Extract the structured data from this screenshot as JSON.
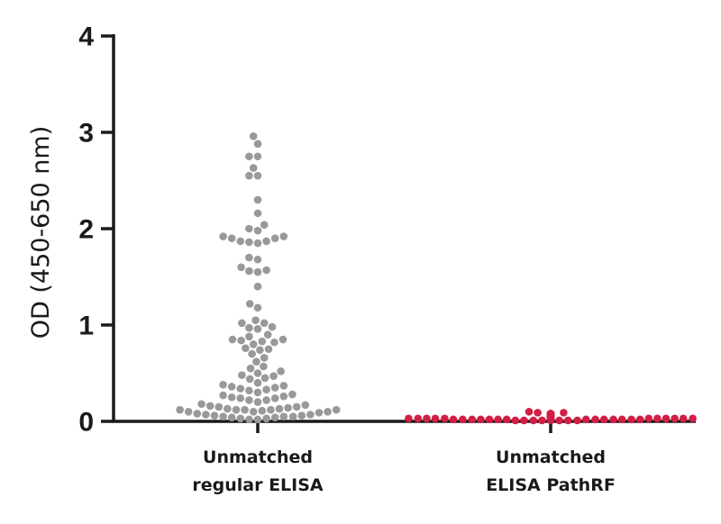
{
  "chart_data": {
    "type": "scatter",
    "subtype": "beeswarm",
    "ylabel": "OD (450-650 nm)",
    "ylim": [
      0,
      4
    ],
    "yticks": [
      0,
      1,
      2,
      3,
      4
    ],
    "ytick_labels": [
      "0",
      "1",
      "2",
      "3",
      "4"
    ],
    "grid": false,
    "legend": "none",
    "categories": [
      {
        "line1": "Unmatched",
        "line2": "regular ELISA"
      },
      {
        "line1": "Unmatched",
        "line2": "ELISA PathRF"
      }
    ],
    "series": [
      {
        "color": "#999999",
        "values": [
          2.96,
          2.88,
          2.75,
          2.75,
          2.63,
          2.55,
          2.55,
          2.3,
          2.16,
          2.04,
          2.0,
          1.98,
          1.92,
          1.92,
          1.9,
          1.9,
          1.87,
          1.87,
          1.86,
          1.85,
          1.7,
          1.68,
          1.6,
          1.57,
          1.56,
          1.55,
          1.4,
          1.22,
          1.18,
          1.05,
          1.02,
          1.02,
          0.98,
          0.97,
          0.96,
          0.9,
          0.88,
          0.85,
          0.85,
          0.84,
          0.83,
          0.82,
          0.8,
          0.76,
          0.75,
          0.74,
          0.7,
          0.66,
          0.62,
          0.57,
          0.55,
          0.52,
          0.5,
          0.48,
          0.47,
          0.45,
          0.44,
          0.4,
          0.38,
          0.37,
          0.36,
          0.35,
          0.34,
          0.33,
          0.32,
          0.3,
          0.28,
          0.27,
          0.26,
          0.25,
          0.24,
          0.24,
          0.22,
          0.22,
          0.2,
          0.18,
          0.17,
          0.16,
          0.15,
          0.15,
          0.14,
          0.13,
          0.13,
          0.12,
          0.12,
          0.12,
          0.12,
          0.12,
          0.11,
          0.1,
          0.1,
          0.1,
          0.09,
          0.08,
          0.07,
          0.07,
          0.06,
          0.06,
          0.05,
          0.05,
          0.05,
          0.04,
          0.04,
          0.03,
          0.03,
          0.02,
          0.02
        ]
      },
      {
        "color": "#d11e45",
        "values": [
          0.1,
          0.09,
          0.09,
          0.08,
          0.08,
          0.08,
          0.08,
          0.07,
          0.07,
          0.07,
          0.07,
          0.07,
          0.06,
          0.06,
          0.06,
          0.06,
          0.06,
          0.06,
          0.06,
          0.06,
          0.05,
          0.05,
          0.05,
          0.05,
          0.05,
          0.05,
          0.05,
          0.05,
          0.05,
          0.05,
          0.04,
          0.04,
          0.04,
          0.04,
          0.04,
          0.04,
          0.04,
          0.04,
          0.04,
          0.04,
          0.04,
          0.03,
          0.03,
          0.03,
          0.03,
          0.03,
          0.03,
          0.03,
          0.03,
          0.03,
          0.03,
          0.03,
          0.03,
          0.03,
          0.02,
          0.02,
          0.02,
          0.02,
          0.02,
          0.02,
          0.02,
          0.02,
          0.02,
          0.02,
          0.02,
          0.02,
          0.02,
          0.02,
          0.01,
          0.01,
          0.01,
          0.01,
          0.01,
          0.01,
          0.01,
          0.01
        ]
      }
    ]
  }
}
